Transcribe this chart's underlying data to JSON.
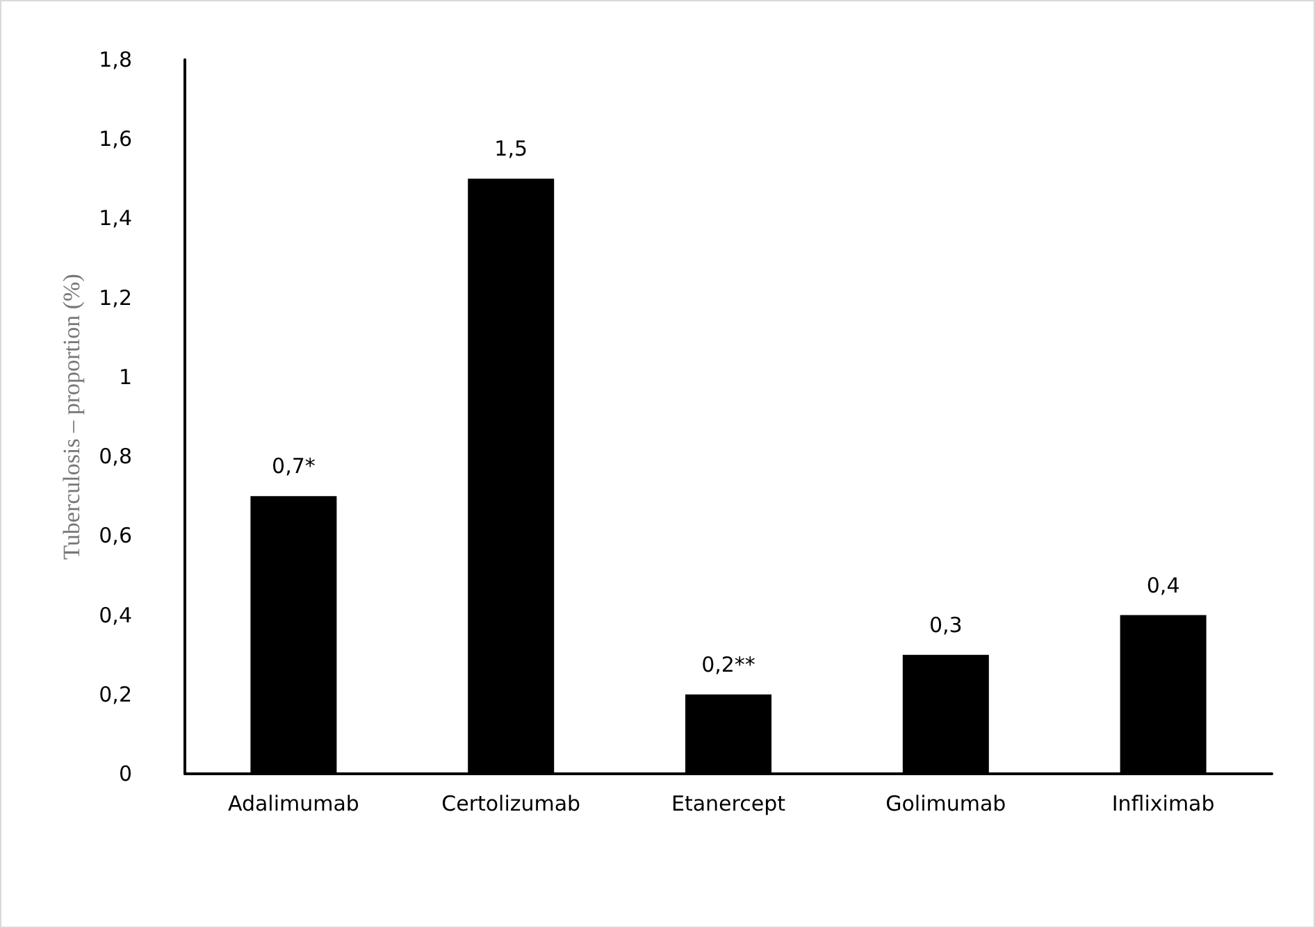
{
  "chart_data": {
    "type": "bar",
    "ylabel": "Tuberculosis – proportion (%)",
    "categories": [
      "Adalimumab",
      "Certolizumab",
      "Etanercept",
      "Golimumab",
      "Infliximab"
    ],
    "values": [
      0.7,
      1.5,
      0.2,
      0.3,
      0.4
    ],
    "color": "#000000",
    "value_labels": [
      "0,7*",
      "1,5",
      "0,2**",
      "0,3",
      "0,4"
    ],
    "ylim": [
      0,
      1.8
    ],
    "yticks": [
      0,
      {
        "value": 0.2,
        "label": "0,2"
      },
      {
        "value": 0.4,
        "label": "0,4"
      },
      {
        "value": 0.6,
        "label": "0,6"
      },
      {
        "value": 0.8,
        "label": "0,8"
      },
      1,
      {
        "value": 1.2,
        "label": "1,2"
      },
      {
        "value": 1.4,
        "label": "1,4"
      },
      {
        "value": 1.6,
        "label": "1,6"
      },
      {
        "value": 1.8,
        "label": "1,8"
      }
    ],
    "grid": false
  }
}
